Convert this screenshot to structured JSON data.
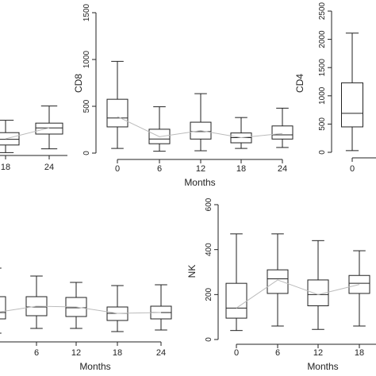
{
  "chart_data": [
    {
      "panel_id": "top-left-partial",
      "type": "box",
      "ylabel": "",
      "xlabel": "",
      "categories": [
        "18",
        "24"
      ],
      "boxes": [
        {
          "min": 30,
          "q1": 110,
          "median": 170,
          "q3": 240,
          "max": 370,
          "mean": 175
        },
        {
          "min": 70,
          "q1": 225,
          "median": 290,
          "q3": 340,
          "max": 520,
          "mean": 290
        }
      ]
    },
    {
      "panel_id": "cd8",
      "type": "box",
      "ylabel": "CD8",
      "xlabel": "Months",
      "ylim": [
        0,
        1500
      ],
      "yticks": [
        "0",
        "500",
        "1000",
        "1500"
      ],
      "categories": [
        "0",
        "6",
        "12",
        "18",
        "24"
      ],
      "boxes": [
        {
          "min": 50,
          "q1": 280,
          "median": 375,
          "q3": 575,
          "max": 980,
          "mean": 390
        },
        {
          "min": 20,
          "q1": 100,
          "median": 150,
          "q3": 255,
          "max": 495,
          "mean": 175
        },
        {
          "min": 25,
          "q1": 150,
          "median": 230,
          "q3": 330,
          "max": 635,
          "mean": 240
        },
        {
          "min": 50,
          "q1": 110,
          "median": 165,
          "q3": 215,
          "max": 380,
          "mean": 165
        },
        {
          "min": 60,
          "q1": 150,
          "median": 195,
          "q3": 290,
          "max": 480,
          "mean": 210
        }
      ]
    },
    {
      "panel_id": "cd4",
      "type": "box",
      "ylabel": "CD4",
      "xlabel": "",
      "ylim": [
        0,
        2500
      ],
      "yticks": [
        "0",
        "500",
        "1000",
        "1500",
        "2000",
        "2500"
      ],
      "categories": [
        "0"
      ],
      "boxes": [
        {
          "min": 30,
          "q1": 450,
          "median": 690,
          "q3": 1230,
          "max": 2110,
          "mean": 700
        }
      ]
    },
    {
      "panel_id": "bottom-left-partial",
      "type": "box",
      "ylabel": "",
      "xlabel": "Months",
      "categories": [
        "",
        "6",
        "12",
        "18",
        "24"
      ],
      "boxes": [
        {
          "min": 20,
          "q1": 110,
          "median": 150,
          "q3": 250,
          "max": 430,
          "mean": 150
        },
        {
          "min": 50,
          "q1": 130,
          "median": 185,
          "q3": 250,
          "max": 380,
          "mean": 190
        },
        {
          "min": 50,
          "q1": 125,
          "median": 180,
          "q3": 245,
          "max": 340,
          "mean": 185
        },
        {
          "min": 30,
          "q1": 100,
          "median": 145,
          "q3": 185,
          "max": 320,
          "mean": 145
        },
        {
          "min": 40,
          "q1": 110,
          "median": 150,
          "q3": 190,
          "max": 325,
          "mean": 150
        }
      ]
    },
    {
      "panel_id": "nk",
      "type": "box",
      "ylabel": "NK",
      "xlabel": "Months",
      "ylim": [
        0,
        600
      ],
      "yticks": [
        "0",
        "200",
        "400",
        "600"
      ],
      "categories": [
        "0",
        "6",
        "12",
        "18"
      ],
      "boxes": [
        {
          "min": 40,
          "q1": 95,
          "median": 140,
          "q3": 250,
          "max": 470,
          "mean": 140
        },
        {
          "min": 60,
          "q1": 205,
          "median": 270,
          "q3": 310,
          "max": 470,
          "mean": 265
        },
        {
          "min": 45,
          "q1": 150,
          "median": 200,
          "q3": 265,
          "max": 440,
          "mean": 200
        },
        {
          "min": 60,
          "q1": 205,
          "median": 250,
          "q3": 285,
          "max": 395,
          "mean": 245
        }
      ]
    }
  ],
  "colors": {
    "axis": "#222222",
    "box": "#222222",
    "mean_line": "#bbbbbb"
  }
}
